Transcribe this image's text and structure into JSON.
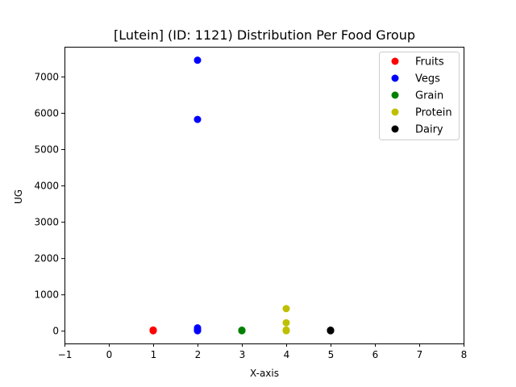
{
  "chart_data": {
    "type": "scatter",
    "title": "[Lutein] (ID: 1121) Distribution Per Food Group",
    "xlabel": "X-axis",
    "ylabel": "UG",
    "xlim": [
      -1,
      8
    ],
    "ylim": [
      -350,
      7820
    ],
    "xticks": [
      -1,
      0,
      1,
      2,
      3,
      4,
      5,
      6,
      7,
      8
    ],
    "yticks": [
      0,
      1000,
      2000,
      3000,
      4000,
      5000,
      6000,
      7000
    ],
    "grid": false,
    "legend_position": "top-right",
    "series": [
      {
        "name": "Fruits",
        "color": "#ff0000",
        "points": [
          [
            1,
            0
          ],
          [
            1,
            5
          ],
          [
            1,
            10
          ],
          [
            1,
            15
          ],
          [
            1,
            20
          ]
        ]
      },
      {
        "name": "Vegs",
        "color": "#0000ff",
        "points": [
          [
            2,
            7450
          ],
          [
            2,
            5820
          ],
          [
            2,
            80
          ],
          [
            2,
            40
          ],
          [
            2,
            10
          ],
          [
            2,
            0
          ]
        ]
      },
      {
        "name": "Grain",
        "color": "#008000",
        "points": [
          [
            3,
            0
          ],
          [
            3,
            5
          ],
          [
            3,
            10
          ],
          [
            3,
            15
          ]
        ]
      },
      {
        "name": "Protein",
        "color": "#bfbf00",
        "points": [
          [
            4,
            610
          ],
          [
            4,
            220
          ],
          [
            4,
            20
          ],
          [
            4,
            5
          ],
          [
            4,
            0
          ]
        ]
      },
      {
        "name": "Dairy",
        "color": "#000000",
        "points": [
          [
            5,
            0
          ],
          [
            5,
            5
          ],
          [
            5,
            10
          ],
          [
            5,
            15
          ]
        ]
      }
    ]
  }
}
